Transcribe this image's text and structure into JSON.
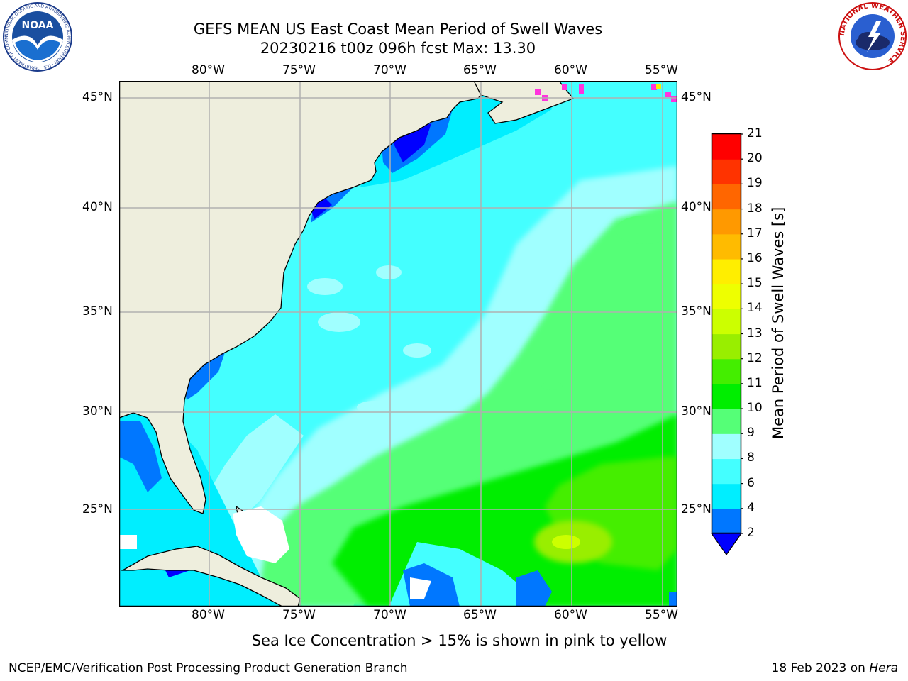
{
  "title": {
    "line1": "GEFS MEAN US East Coast Mean Period of Swell Waves",
    "line2": "20230216 t00z 096h fcst   Max: 13.30"
  },
  "map": {
    "lon_labels": [
      "80°W",
      "75°W",
      "70°W",
      "65°W",
      "60°W",
      "55°W"
    ],
    "lat_labels": [
      "45°N",
      "40°N",
      "35°N",
      "30°N",
      "25°N"
    ],
    "colors": {
      "land": "#eeeedd",
      "ice_pink": "#ff33dd",
      "grid": "#b0b0b0"
    }
  },
  "colorbar": {
    "label": "Mean Period of Swell Waves [s]",
    "ticks": [
      "2",
      "4",
      "6",
      "8",
      "9",
      "10",
      "11",
      "12",
      "13",
      "14",
      "15",
      "16",
      "17",
      "18",
      "19",
      "20",
      "21"
    ],
    "levels": [
      {
        "range": "<2",
        "color": "#0000ff"
      },
      {
        "range": "2-4",
        "color": "#0077ff"
      },
      {
        "range": "4-6",
        "color": "#00eeff"
      },
      {
        "range": "6-8",
        "color": "#44ffff"
      },
      {
        "range": "8-9",
        "color": "#a0ffff"
      },
      {
        "range": "9-10",
        "color": "#55ff77"
      },
      {
        "range": "10-11",
        "color": "#00ee00"
      },
      {
        "range": "11-12",
        "color": "#44ee00"
      },
      {
        "range": "12-13",
        "color": "#99ee00"
      },
      {
        "range": "13-14",
        "color": "#ccff00"
      },
      {
        "range": "14-15",
        "color": "#eeff00"
      },
      {
        "range": "15-16",
        "color": "#ffee00"
      },
      {
        "range": "16-17",
        "color": "#ffbb00"
      },
      {
        "range": "17-18",
        "color": "#ff9900"
      },
      {
        "range": "18-19",
        "color": "#ff6600"
      },
      {
        "range": "19-20",
        "color": "#ff3300"
      },
      {
        "range": "20-21",
        "color": "#ff0000"
      }
    ]
  },
  "note": "Sea Ice Concentration > 15% is shown in pink to yellow",
  "footer": {
    "left": "NCEP/EMC/Verification Post Processing Product Generation Branch",
    "date": "18 Feb 2023 on ",
    "machine": "Hera"
  },
  "logos": {
    "noaa_text": "NOAA",
    "noaa_ring": "NATIONAL OCEANIC AND ATMOSPHERIC ADMINISTRATION · U.S. DEPARTMENT OF COMMERCE",
    "nws_ring": "NATIONAL WEATHER SERVICE"
  }
}
